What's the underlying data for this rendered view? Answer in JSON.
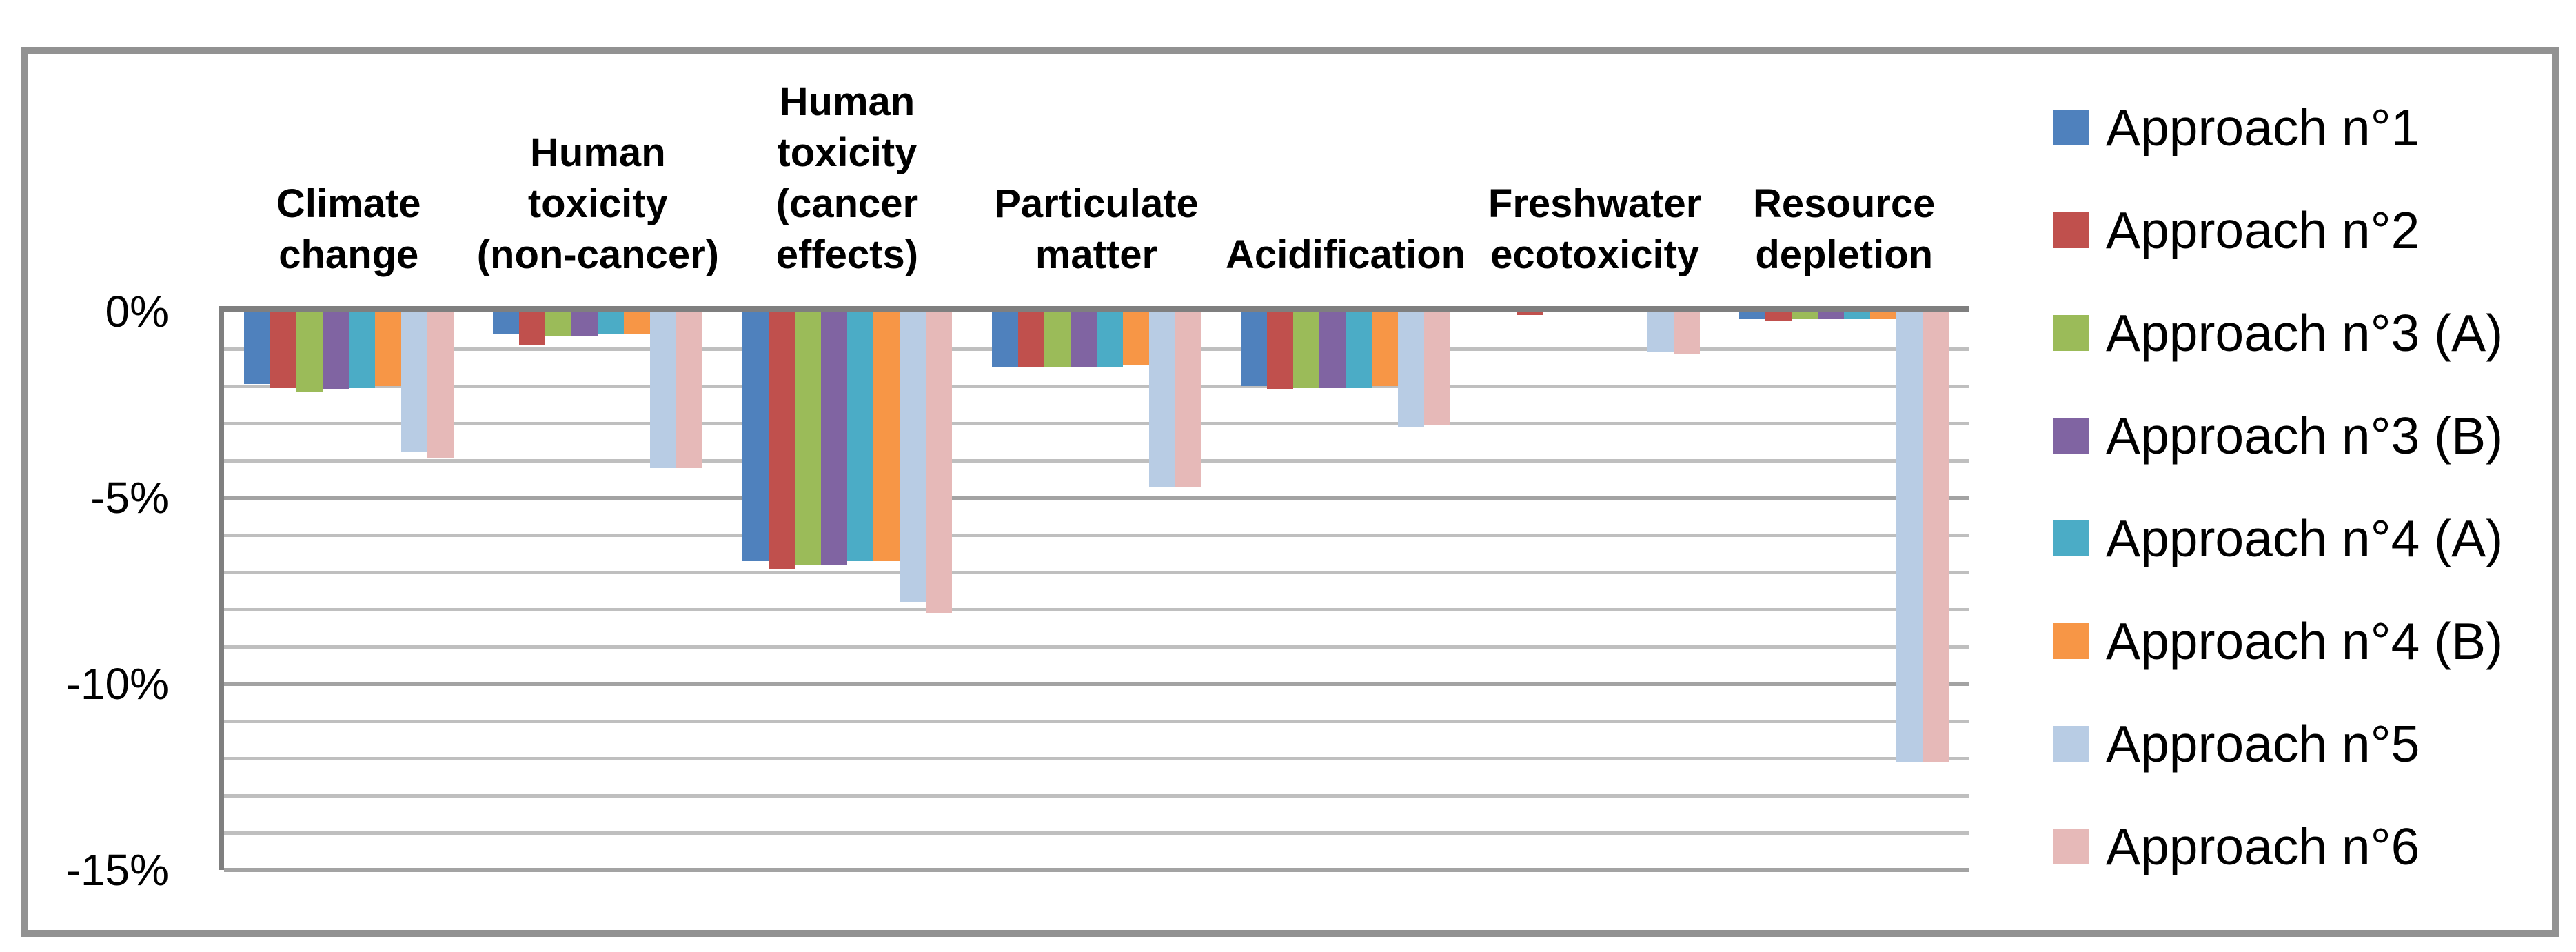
{
  "chart_data": {
    "type": "bar",
    "title": "",
    "xlabel": "",
    "ylabel": "",
    "orientation": "vertical-grouped",
    "grid": "horizontal-on",
    "legend_position": "right",
    "categories": [
      "Climate change",
      "Human toxicity (non-cancer)",
      "Human toxicity (cancer effects)",
      "Particulate matter",
      "Acidification",
      "Freshwater ecotoxicity",
      "Resource depletion"
    ],
    "category_label_lines": [
      [
        "Climate",
        "change"
      ],
      [
        "Human",
        "toxicity",
        "(non-cancer)"
      ],
      [
        "Human",
        "toxicity",
        "(cancer",
        "effects)"
      ],
      [
        "Particulate",
        "matter"
      ],
      [
        "Acidification"
      ],
      [
        "Freshwater",
        "ecotoxicity"
      ],
      [
        "Resource",
        "depletion"
      ]
    ],
    "series": [
      {
        "name": "Approach n°1",
        "color": "#4F81BD",
        "values": [
          -1.95,
          -0.6,
          -6.7,
          -1.5,
          -2.0,
          0,
          -0.2
        ]
      },
      {
        "name": "Approach n°2",
        "color": "#C0504D",
        "values": [
          -2.05,
          -0.9,
          -6.9,
          -1.5,
          -2.1,
          -0.1,
          -0.25
        ]
      },
      {
        "name": "Approach n°3 (A)",
        "color": "#9BBB59",
        "values": [
          -2.15,
          -0.65,
          -6.8,
          -1.5,
          -2.05,
          0,
          -0.2
        ]
      },
      {
        "name": "Approach n°3 (B)",
        "color": "#8064A2",
        "values": [
          -2.1,
          -0.65,
          -6.8,
          -1.5,
          -2.05,
          0,
          -0.2
        ]
      },
      {
        "name": "Approach n°4 (A)",
        "color": "#4BACC6",
        "values": [
          -2.05,
          -0.6,
          -6.7,
          -1.5,
          -2.05,
          0,
          -0.2
        ]
      },
      {
        "name": "Approach n°4 (B)",
        "color": "#F79646",
        "values": [
          -2.0,
          -0.6,
          -6.7,
          -1.45,
          -2.0,
          0,
          -0.2
        ]
      },
      {
        "name": "Approach n°5",
        "color": "#B8CCE4",
        "values": [
          -3.75,
          -4.2,
          -7.8,
          -4.7,
          -3.1,
          -1.1,
          -12.1
        ]
      },
      {
        "name": "Approach n°6",
        "color": "#E6B9B8",
        "values": [
          -3.95,
          -4.2,
          -8.1,
          -4.7,
          -3.05,
          -1.15,
          -12.1
        ]
      }
    ],
    "y_axis": {
      "ylim": [
        -15,
        0
      ],
      "tick_values": [
        0,
        -5,
        -10,
        -15
      ],
      "tick_labels": [
        "0%",
        "-5%",
        "-10%",
        "-15%"
      ],
      "minor_gridline_step_pct": 1,
      "major_gridline_step_pct": 5
    },
    "colors": {
      "minor_gridline": "#bfbfbf",
      "major_gridline": "#a3a3a3",
      "zero_and_axis_line": "#7f7f7f",
      "frame_border": "#929292",
      "background": "#ffffff",
      "text": "#000000"
    }
  }
}
